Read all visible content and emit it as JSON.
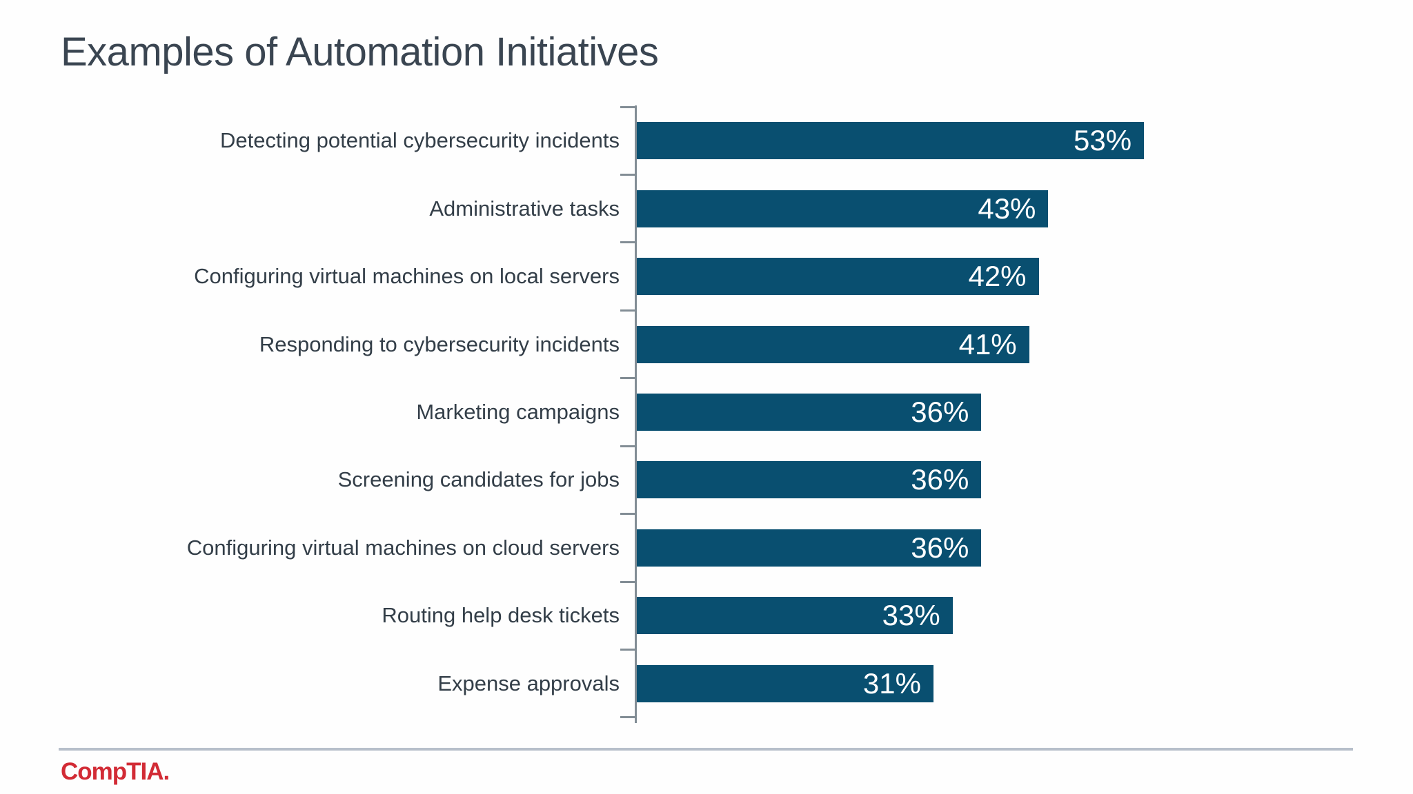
{
  "slide": {
    "title": "Examples of Automation Initiatives",
    "footer_logo": "CompTIA."
  },
  "chart_data": {
    "type": "bar",
    "orientation": "horizontal",
    "title": "Examples of Automation Initiatives",
    "categories": [
      "Detecting potential cybersecurity incidents",
      "Administrative tasks",
      "Configuring virtual machines on local servers",
      "Responding to cybersecurity incidents",
      "Marketing campaigns",
      "Screening candidates for jobs",
      "Configuring virtual machines on cloud servers",
      "Routing help desk tickets",
      "Expense approvals"
    ],
    "values": [
      53,
      43,
      42,
      41,
      36,
      36,
      36,
      33,
      31
    ],
    "value_labels": [
      "53%",
      "43%",
      "42%",
      "41%",
      "36%",
      "36%",
      "36%",
      "33%",
      "31%"
    ],
    "xlabel": "",
    "ylabel": "",
    "xlim": [
      0,
      60
    ],
    "grid": false,
    "legend": false,
    "value_labels_position": "inside-end",
    "bar_color": "#094f70",
    "value_label_color": "#ffffff",
    "axis_color": "#828d95",
    "category_label_color": "#333e48"
  },
  "colors": {
    "title": "#3a4551",
    "divider": "#b7bfca",
    "logo_red": "#d22b35",
    "background": "#fefefe"
  }
}
